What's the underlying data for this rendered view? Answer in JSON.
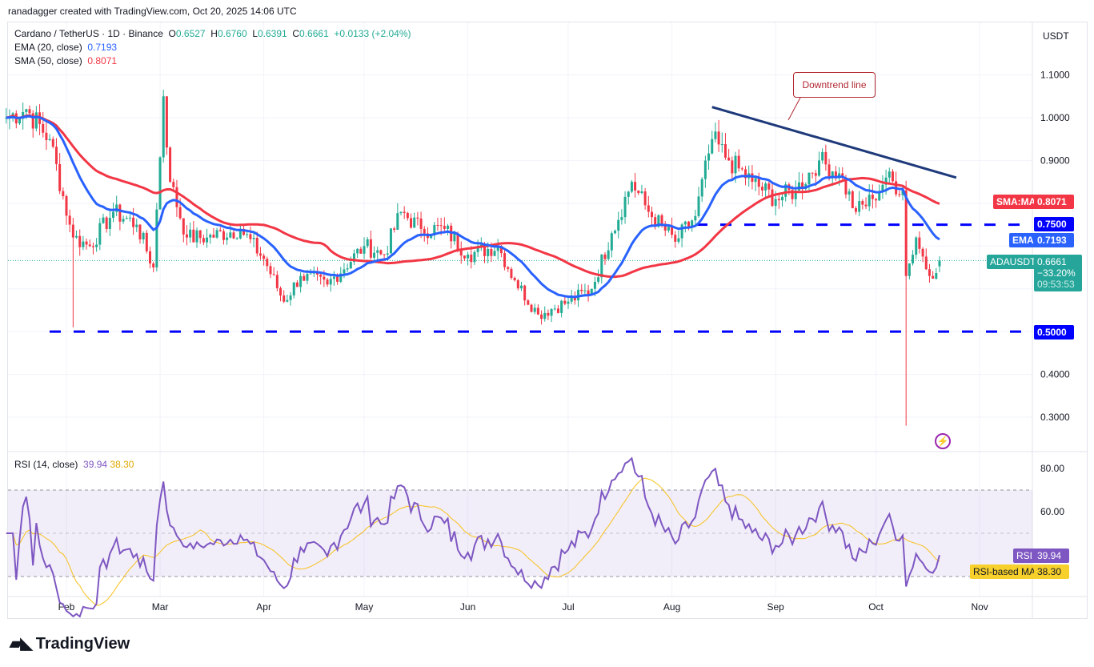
{
  "credit": "ranadagger created with TradingView.com, Oct 20, 2025 14:06 UTC",
  "legend": {
    "symbol": "Cardano / TetherUS · 1D · Binance",
    "o_label": "O",
    "o": "0.6527",
    "h_label": "H",
    "h": "0.6760",
    "l_label": "L",
    "l": "0.6391",
    "c_label": "C",
    "c": "0.6661",
    "change": "+0.0133 (+2.04%)",
    "ema_label": "EMA (20, close)",
    "ema": "0.7193",
    "sma_label": "SMA (50, close)",
    "sma": "0.8071",
    "rsi_label": "RSI (14, close)",
    "rsi": "39.94",
    "rsi_ma": "38.30"
  },
  "axis": {
    "currency": "USDT"
  },
  "tags": {
    "sma_name": "SMA:MA",
    "sma": "0.8071",
    "level_high": "0.7500",
    "ema_name": "EMA",
    "ema": "0.7193",
    "symbol": "ADAUSDT",
    "price": "0.6661",
    "pct": "−33.20%",
    "countdown": "09:53:53",
    "level_low": "0.5000",
    "rsi_name": "RSI",
    "rsi": "39.94",
    "rsi_ma_name": "RSI-based MA",
    "rsi_ma": "38.30"
  },
  "annotation": "Downtrend line",
  "logo": "TradingView",
  "colors": {
    "up": "#22ab94",
    "down": "#f23645",
    "ema": "#2962ff",
    "sma": "#f23645",
    "level": "#0000ff",
    "trend": "#1e3a7b",
    "rsi": "#7e57c2",
    "rsi_ma": "#f7c01b"
  },
  "chart_data": {
    "type": "candlestick",
    "price_ticks": [
      0.3,
      0.4,
      0.5,
      0.6,
      0.7,
      0.8,
      0.9,
      1.0,
      1.1
    ],
    "rsi_ticks": [
      60,
      80
    ],
    "rsi_bands": [
      30,
      70
    ],
    "x_ticks": [
      "Feb",
      "Mar",
      "Apr",
      "May",
      "Jun",
      "Jul",
      "Aug",
      "Sep",
      "Oct",
      "Nov"
    ],
    "approx_closes": [
      [
        "2025-01-14",
        1.0
      ],
      [
        "2025-01-20",
        1.02
      ],
      [
        "2025-01-27",
        0.95
      ],
      [
        "2025-02-02",
        0.75
      ],
      [
        "2025-02-03",
        0.72
      ],
      [
        "2025-02-08",
        0.7
      ],
      [
        "2025-02-15",
        0.78
      ],
      [
        "2025-02-22",
        0.75
      ],
      [
        "2025-02-27",
        0.65
      ],
      [
        "2025-03-02",
        1.05
      ],
      [
        "2025-03-04",
        0.85
      ],
      [
        "2025-03-09",
        0.72
      ],
      [
        "2025-03-15",
        0.72
      ],
      [
        "2025-03-25",
        0.74
      ],
      [
        "2025-04-01",
        0.67
      ],
      [
        "2025-04-07",
        0.57
      ],
      [
        "2025-04-12",
        0.63
      ],
      [
        "2025-04-20",
        0.61
      ],
      [
        "2025-05-01",
        0.7
      ],
      [
        "2025-05-07",
        0.68
      ],
      [
        "2025-05-12",
        0.78
      ],
      [
        "2025-05-18",
        0.74
      ],
      [
        "2025-05-25",
        0.74
      ],
      [
        "2025-06-01",
        0.68
      ],
      [
        "2025-06-10",
        0.7
      ],
      [
        "2025-06-15",
        0.62
      ],
      [
        "2025-06-22",
        0.54
      ],
      [
        "2025-07-01",
        0.57
      ],
      [
        "2025-07-08",
        0.6
      ],
      [
        "2025-07-14",
        0.73
      ],
      [
        "2025-07-20",
        0.85
      ],
      [
        "2025-07-25",
        0.78
      ],
      [
        "2025-08-02",
        0.71
      ],
      [
        "2025-08-08",
        0.77
      ],
      [
        "2025-08-13",
        0.95
      ],
      [
        "2025-08-18",
        0.9
      ],
      [
        "2025-08-25",
        0.85
      ],
      [
        "2025-09-01",
        0.81
      ],
      [
        "2025-09-07",
        0.83
      ],
      [
        "2025-09-14",
        0.9
      ],
      [
        "2025-09-20",
        0.87
      ],
      [
        "2025-09-25",
        0.78
      ],
      [
        "2025-09-30",
        0.81
      ],
      [
        "2025-10-04",
        0.86
      ],
      [
        "2025-10-09",
        0.83
      ],
      [
        "2025-10-10",
        0.63
      ],
      [
        "2025-10-13",
        0.72
      ],
      [
        "2025-10-17",
        0.63
      ],
      [
        "2025-10-20",
        0.6661
      ]
    ],
    "notable_lows": [
      [
        "2025-02-03",
        0.51
      ],
      [
        "2025-10-10",
        0.28
      ]
    ],
    "horizontal_levels": [
      0.75,
      0.5
    ],
    "trendline": [
      [
        "2025-08-13",
        1.025
      ],
      [
        "2025-10-25",
        0.86
      ]
    ],
    "last": {
      "open": 0.6527,
      "high": 0.676,
      "low": 0.6391,
      "close": 0.6661,
      "ema20": 0.7193,
      "sma50": 0.8071,
      "rsi14": 39.94,
      "rsi_ma": 38.3
    }
  }
}
